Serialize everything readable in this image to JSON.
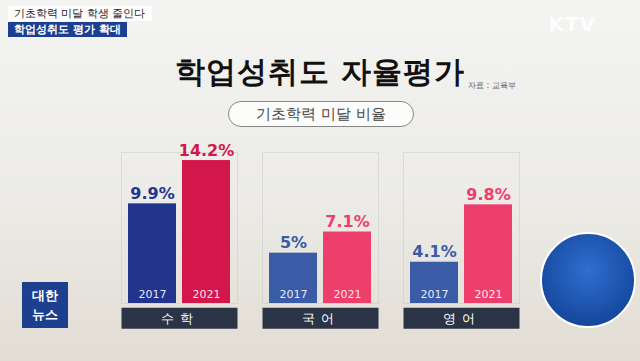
{
  "header": {
    "line1": "기초학력 미달 학생 줄인다",
    "line2": "학업성취도 평가 확대"
  },
  "watermark": "KTV",
  "logo": [
    "대한",
    "뉴스"
  ],
  "source": "자료 : 교육부",
  "chart_data": {
    "type": "bar",
    "title": "학업성취도 자율평가",
    "subtitle": "기초학력 미달 비율",
    "categories": [
      "수학",
      "국어",
      "영어"
    ],
    "series": [
      {
        "name": "2017",
        "color": "#3a5ba6",
        "colors": [
          "#23348f",
          "#3a5ba6",
          "#3a5ba6"
        ],
        "values": [
          9.9,
          5,
          4.1
        ],
        "value_labels": [
          "9.9%",
          "5%",
          "4.1%"
        ]
      },
      {
        "name": "2021",
        "color": "#ee3e6b",
        "colors": [
          "#d4174b",
          "#ee3e6b",
          "#ee3e6b"
        ],
        "values": [
          14.2,
          7.1,
          9.8
        ],
        "value_labels": [
          "14.2%",
          "7.1%",
          "9.8%"
        ]
      }
    ],
    "ylim": [
      0,
      15
    ],
    "yticks": [],
    "data_labels": true,
    "tick_labels": "x",
    "grid": false
  }
}
